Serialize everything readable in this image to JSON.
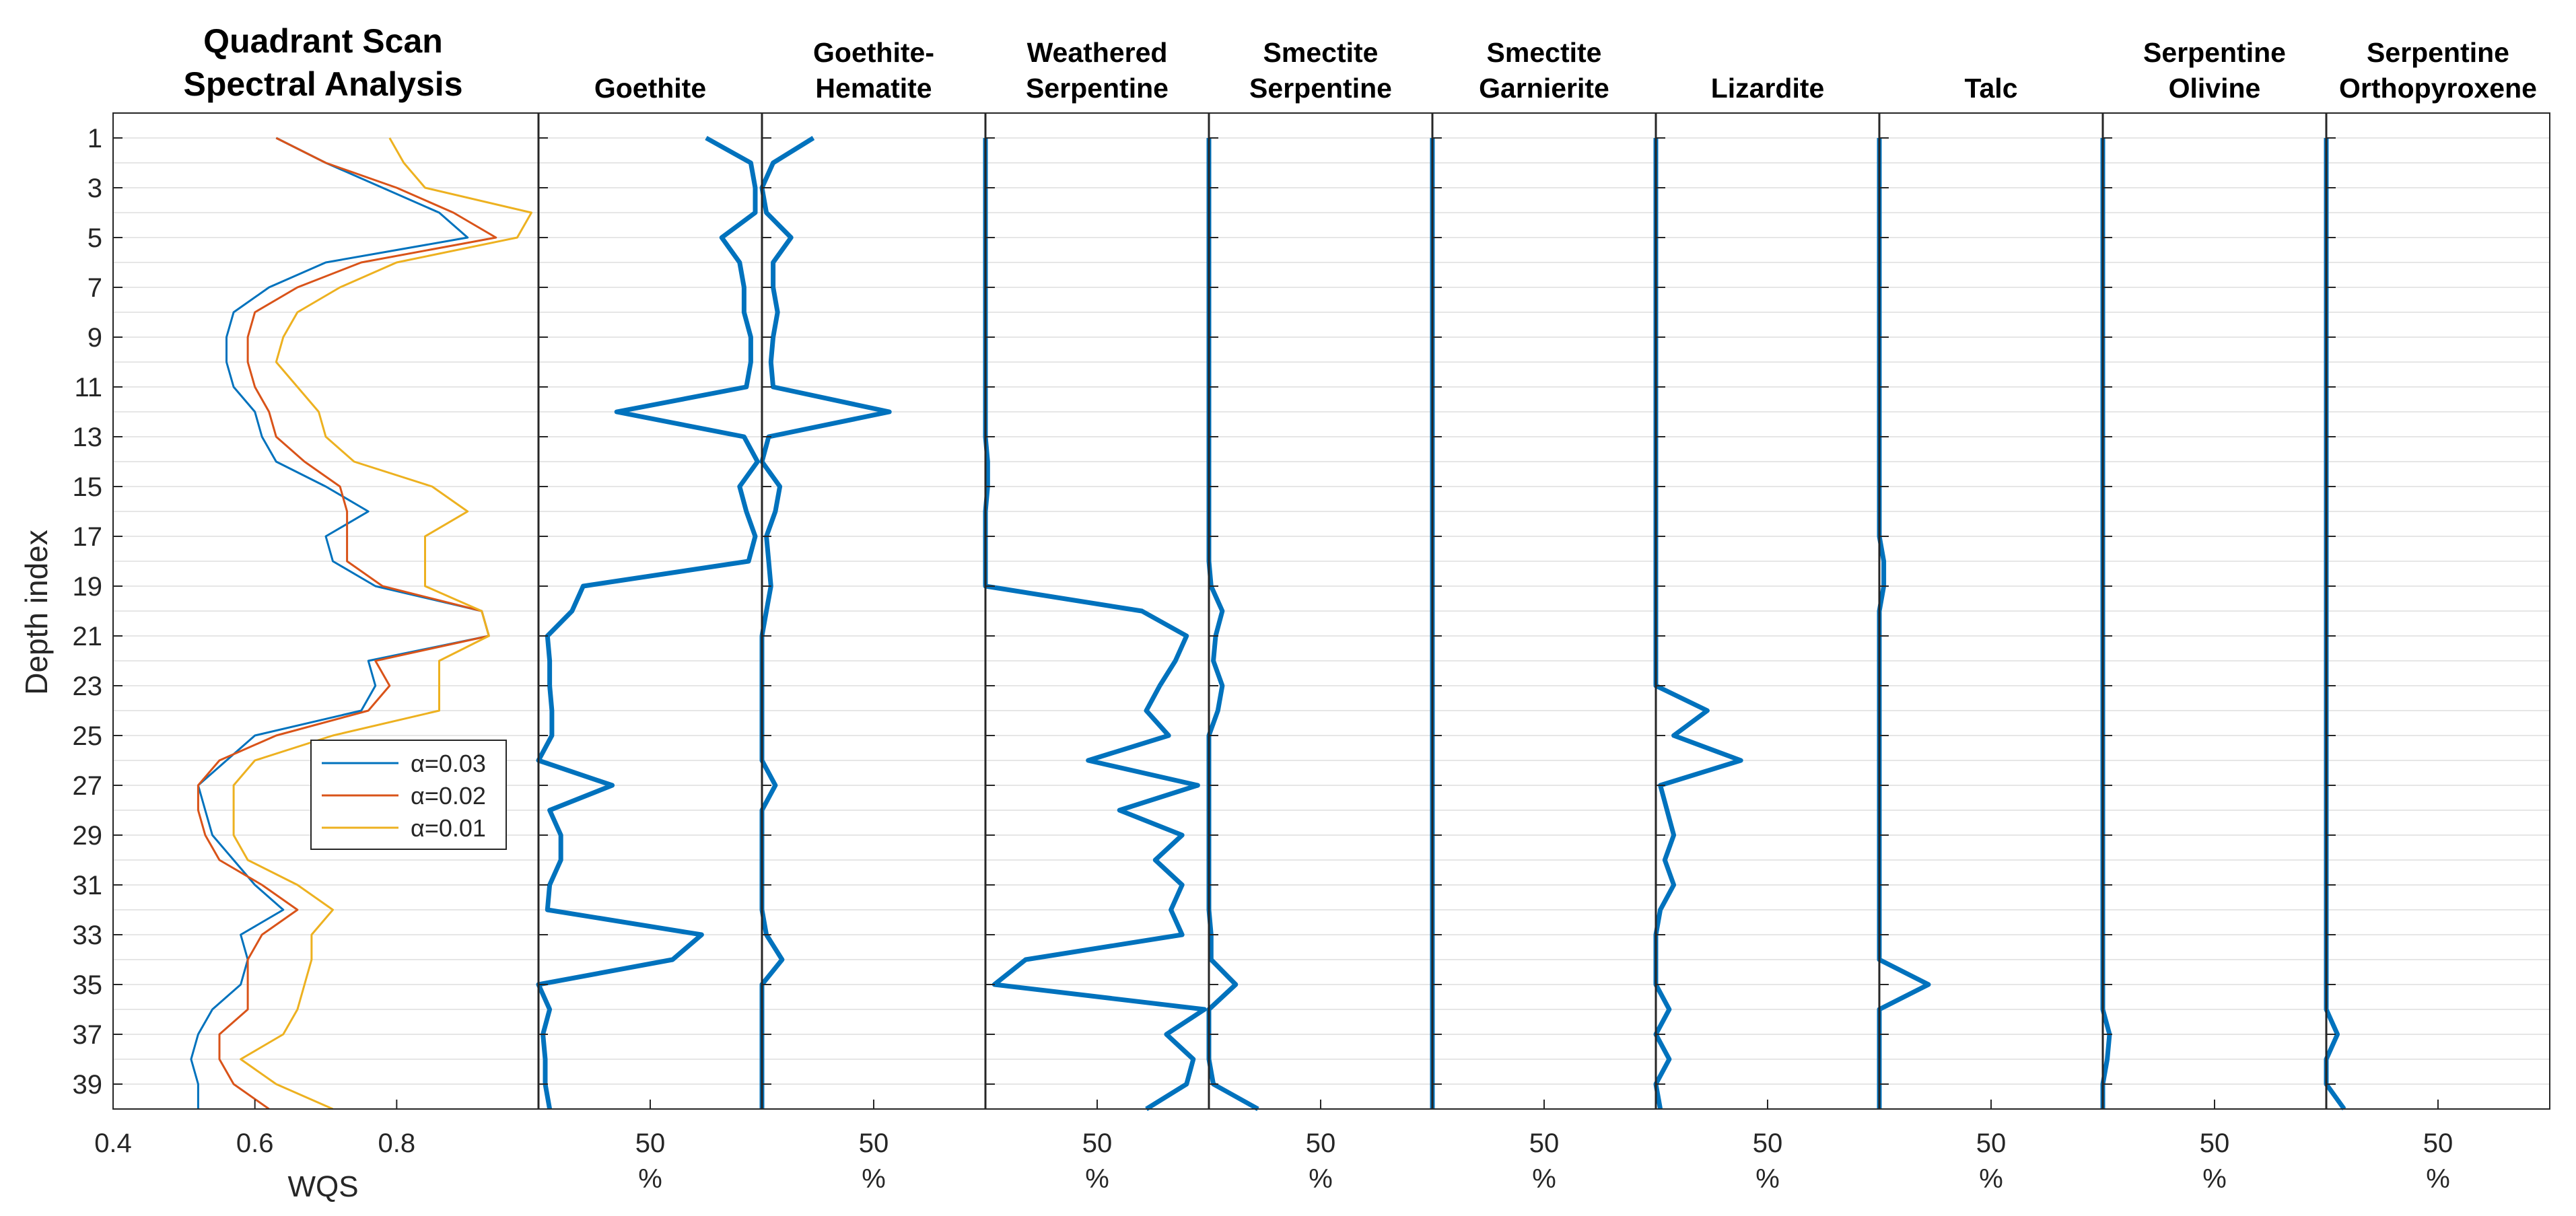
{
  "chart_data": {
    "type": "line",
    "depth_axis": {
      "label": "Depth index",
      "range": [
        0,
        40
      ],
      "ticks": [
        "1",
        "3",
        "5",
        "7",
        "9",
        "11",
        "13",
        "15",
        "17",
        "19",
        "21",
        "23",
        "25",
        "27",
        "29",
        "31",
        "33",
        "35",
        "37",
        "39"
      ]
    },
    "wqs_panel": {
      "title_lines": [
        "Quadrant Scan",
        "Spectral Analysis"
      ],
      "xlabel": "WQS",
      "xlim": [
        0.4,
        1.0
      ],
      "xticks": [
        "0.4",
        "0.6",
        "0.8"
      ],
      "legend": {
        "placement": "lower-right",
        "entries": [
          "α=0.03",
          "α=0.02",
          "α=0.01"
        ]
      },
      "series": [
        {
          "name": "α=0.03",
          "color": "#0072BD",
          "values": [
            0.63,
            0.7,
            0.78,
            0.86,
            0.9,
            0.7,
            0.62,
            0.57,
            0.56,
            0.56,
            0.57,
            0.6,
            0.61,
            0.63,
            0.7,
            0.76,
            0.7,
            0.71,
            0.77,
            0.92,
            0.93,
            0.76,
            0.77,
            0.75,
            0.6,
            0.56,
            0.52,
            0.53,
            0.54,
            0.57,
            0.6,
            0.64,
            0.58,
            0.59,
            0.58,
            0.54,
            0.52,
            0.51,
            0.52,
            0.52
          ]
        },
        {
          "name": "α=0.02",
          "color": "#D95319",
          "values": [
            0.63,
            0.7,
            0.8,
            0.88,
            0.94,
            0.75,
            0.66,
            0.6,
            0.59,
            0.59,
            0.6,
            0.62,
            0.63,
            0.67,
            0.72,
            0.73,
            0.73,
            0.73,
            0.78,
            0.92,
            0.93,
            0.77,
            0.79,
            0.76,
            0.63,
            0.55,
            0.52,
            0.52,
            0.53,
            0.55,
            0.61,
            0.66,
            0.61,
            0.59,
            0.59,
            0.59,
            0.55,
            0.55,
            0.57,
            0.62
          ]
        },
        {
          "name": "α=0.01",
          "color": "#EDB120",
          "values": [
            0.79,
            0.81,
            0.84,
            0.99,
            0.97,
            0.8,
            0.72,
            0.66,
            0.64,
            0.63,
            0.66,
            0.69,
            0.7,
            0.74,
            0.85,
            0.9,
            0.84,
            0.84,
            0.84,
            0.92,
            0.93,
            0.86,
            0.86,
            0.86,
            0.71,
            0.6,
            0.57,
            0.57,
            0.57,
            0.59,
            0.66,
            0.71,
            0.68,
            0.68,
            0.67,
            0.66,
            0.64,
            0.58,
            0.63,
            0.71
          ]
        }
      ]
    },
    "mineral_panels": {
      "xlabel": "%",
      "xlim": [
        0,
        100
      ],
      "xtick": "50",
      "color": "#0072BD",
      "panels": [
        {
          "title_lines": [
            "",
            "Goethite"
          ],
          "values": [
            75,
            95,
            97,
            97,
            82,
            90,
            92,
            92,
            95,
            95,
            93,
            35,
            92,
            98,
            90,
            93,
            97,
            94,
            20,
            15,
            4,
            5,
            5,
            6,
            6,
            0,
            33,
            5,
            10,
            10,
            5,
            4,
            73,
            60,
            0,
            5,
            2,
            3,
            3,
            5
          ]
        },
        {
          "title_lines": [
            "Goethite-",
            "Hematite"
          ],
          "values": [
            23,
            5,
            0,
            2,
            13,
            5,
            5,
            7,
            5,
            4,
            5,
            57,
            3,
            0,
            8,
            6,
            2,
            3,
            4,
            2,
            0,
            0,
            0,
            0,
            0,
            0,
            6,
            0,
            0,
            0,
            0,
            0,
            2,
            9,
            0,
            0,
            0,
            0,
            0,
            0
          ]
        },
        {
          "title_lines": [
            "Weathered",
            "Serpentine"
          ],
          "values": [
            0,
            0,
            0,
            0,
            0,
            0,
            0,
            0,
            0,
            0,
            0,
            0,
            0,
            1,
            1,
            0,
            0,
            0,
            0,
            70,
            90,
            85,
            78,
            72,
            82,
            46,
            95,
            60,
            88,
            76,
            88,
            83,
            88,
            18,
            4,
            98,
            81,
            93,
            90,
            72
          ]
        },
        {
          "title_lines": [
            "Smectite",
            "Serpentine"
          ],
          "values": [
            0,
            0,
            0,
            0,
            0,
            0,
            0,
            0,
            0,
            0,
            0,
            0,
            0,
            0,
            0,
            0,
            0,
            0,
            1,
            6,
            3,
            2,
            6,
            4,
            0,
            0,
            0,
            0,
            0,
            0,
            0,
            0,
            1,
            1,
            12,
            0,
            0,
            0,
            2,
            22
          ]
        },
        {
          "title_lines": [
            "Smectite",
            "Garnierite"
          ],
          "values": [
            0,
            0,
            0,
            0,
            0,
            0,
            0,
            0,
            0,
            0,
            0,
            0,
            0,
            0,
            0,
            0,
            0,
            0,
            0,
            0,
            0,
            0,
            0,
            0,
            0,
            0,
            0,
            0,
            0,
            0,
            0,
            0,
            0,
            0,
            0,
            0,
            0,
            0,
            0,
            0
          ]
        },
        {
          "title_lines": [
            "",
            "Lizardite"
          ],
          "values": [
            0,
            0,
            0,
            0,
            0,
            0,
            0,
            0,
            0,
            0,
            0,
            0,
            0,
            0,
            0,
            0,
            0,
            0,
            0,
            0,
            0,
            0,
            0,
            23,
            8,
            38,
            2,
            5,
            8,
            4,
            8,
            2,
            0,
            0,
            0,
            6,
            0,
            6,
            0,
            2
          ]
        },
        {
          "title_lines": [
            "",
            "Talc"
          ],
          "values": [
            0,
            0,
            0,
            0,
            0,
            0,
            0,
            0,
            0,
            0,
            0,
            0,
            0,
            0,
            0,
            0,
            0,
            2,
            2,
            0,
            0,
            0,
            0,
            0,
            0,
            0,
            0,
            0,
            0,
            0,
            0,
            0,
            0,
            0,
            22,
            0,
            0,
            0,
            0,
            0
          ]
        },
        {
          "title_lines": [
            "Serpentine",
            "Olivine"
          ],
          "values": [
            0,
            0,
            0,
            0,
            0,
            0,
            0,
            0,
            0,
            0,
            0,
            0,
            0,
            0,
            0,
            0,
            0,
            0,
            0,
            0,
            0,
            0,
            0,
            0,
            0,
            0,
            0,
            0,
            0,
            0,
            0,
            0,
            0,
            0,
            0,
            0,
            3,
            2,
            0,
            0
          ]
        },
        {
          "title_lines": [
            "Serpentine",
            "Orthopyroxene"
          ],
          "values": [
            0,
            0,
            0,
            0,
            0,
            0,
            0,
            0,
            0,
            0,
            0,
            0,
            0,
            0,
            0,
            0,
            0,
            0,
            0,
            0,
            0,
            0,
            0,
            0,
            0,
            0,
            0,
            0,
            0,
            0,
            0,
            0,
            0,
            0,
            0,
            0,
            5,
            0,
            0,
            8
          ]
        }
      ]
    }
  }
}
